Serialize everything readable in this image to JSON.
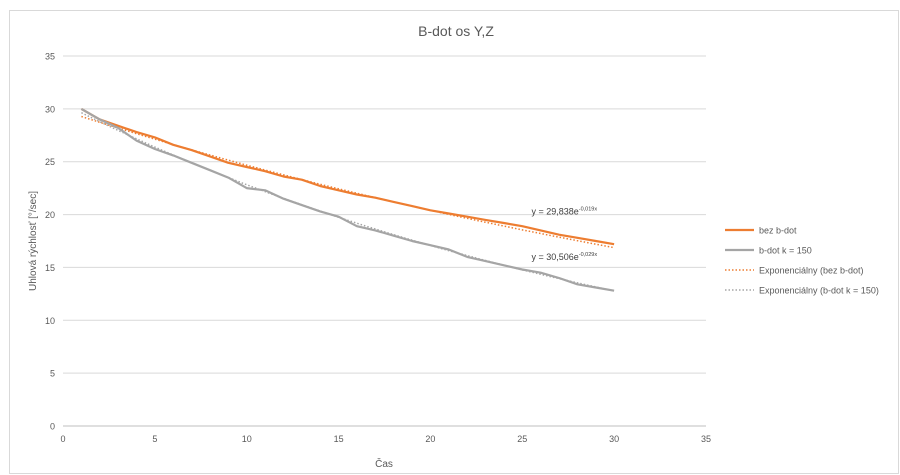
{
  "chart_data": {
    "type": "line",
    "title": "B-dot os Y,Z",
    "xlabel": "Čas",
    "ylabel": "Uhlová rýchlosť [°/sec]",
    "xlim": [
      0,
      35
    ],
    "ylim": [
      0,
      35
    ],
    "x_ticks": [
      0,
      5,
      10,
      15,
      20,
      25,
      30,
      35
    ],
    "y_ticks": [
      0,
      5,
      10,
      15,
      20,
      25,
      30,
      35
    ],
    "grid": true,
    "legend_position": "right",
    "x": [
      1,
      2,
      3,
      4,
      5,
      6,
      7,
      8,
      9,
      10,
      11,
      12,
      13,
      14,
      15,
      16,
      17,
      18,
      19,
      20,
      21,
      22,
      23,
      24,
      25,
      26,
      27,
      28,
      29,
      30
    ],
    "series": [
      {
        "name": "bez b-dot",
        "color": "#ed7d31",
        "values": [
          30.0,
          29.0,
          28.4,
          27.8,
          27.3,
          26.6,
          26.1,
          25.5,
          24.9,
          24.5,
          24.1,
          23.6,
          23.3,
          22.7,
          22.3,
          21.9,
          21.6,
          21.2,
          20.8,
          20.4,
          20.1,
          19.8,
          19.5,
          19.2,
          18.9,
          18.5,
          18.1,
          17.8,
          17.5,
          17.2
        ]
      },
      {
        "name": "b-dot k = 150",
        "color": "#a5a5a5",
        "values": [
          30.0,
          29.0,
          28.2,
          27.0,
          26.2,
          25.6,
          24.9,
          24.2,
          23.5,
          22.5,
          22.3,
          21.5,
          20.9,
          20.3,
          19.8,
          18.9,
          18.5,
          18.0,
          17.5,
          17.1,
          16.7,
          16.0,
          15.6,
          15.2,
          14.8,
          14.5,
          14.0,
          13.4,
          13.1,
          12.8
        ]
      }
    ],
    "trendlines": [
      {
        "name": "Exponenciálny (bez b-dot)",
        "color": "#ed7d31",
        "style": "dotted",
        "a": 29.838,
        "b": -0.019,
        "equation_base": "y = 29,838e",
        "equation_exp": "-0,019x",
        "label_anchor": [
          25.5,
          20.0
        ]
      },
      {
        "name": "Exponenciálny (b-dot k = 150)",
        "color": "#a5a5a5",
        "style": "dotted",
        "a": 30.506,
        "b": -0.029,
        "equation_base": "y = 30,506e",
        "equation_exp": "-0,029x",
        "label_anchor": [
          25.5,
          15.7
        ]
      }
    ]
  }
}
